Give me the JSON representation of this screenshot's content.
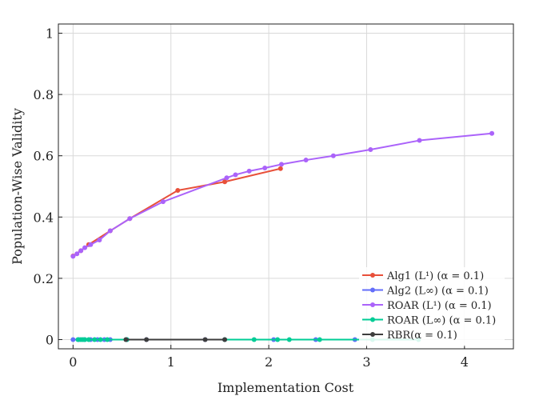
{
  "chart_data": {
    "type": "line",
    "title": "",
    "xlabel": "Implementation Cost",
    "ylabel": "Population-Wise Validity",
    "xlim": [
      -0.15,
      4.5
    ],
    "ylim": [
      -0.03,
      1.03
    ],
    "xticks": [
      0,
      1,
      2,
      3,
      4
    ],
    "yticks": [
      0,
      0.2,
      0.4,
      0.6,
      0.8,
      1
    ],
    "ytick_labels": [
      "0",
      "0.2",
      "0.4",
      "0.6",
      "0.8",
      "1"
    ],
    "grid": true,
    "legend_position": "bottom-right",
    "series": [
      {
        "name": "Alg1 (L¹) (α = 0.1)",
        "legend_label": "Alg1 (L¹) (α = 0.1)",
        "color": "#e8503a",
        "x": [
          0.0,
          0.08,
          0.16,
          0.38,
          0.58,
          1.07,
          1.55,
          2.12
        ],
        "y": [
          0.273,
          0.29,
          0.31,
          0.355,
          0.395,
          0.487,
          0.515,
          0.558
        ]
      },
      {
        "name": "Alg2 (L∞) (α = 0.1)",
        "legend_label": "Alg2 (L∞) (α = 0.1)",
        "color": "#636efa",
        "x": [
          0.0,
          0.06,
          0.12,
          0.18,
          0.25,
          0.32,
          0.38,
          0.55,
          0.75,
          1.35,
          1.55,
          2.05,
          2.48,
          2.88
        ],
        "y": [
          0,
          0,
          0,
          0,
          0,
          0,
          0,
          0,
          0,
          0,
          0,
          0,
          0,
          0
        ]
      },
      {
        "name": "ROAR (L¹) (α = 0.1)",
        "legend_label": "ROAR (L¹) (α = 0.1)",
        "color": "#ab63fa",
        "x": [
          0.0,
          0.04,
          0.08,
          0.12,
          0.18,
          0.27,
          0.38,
          0.58,
          0.92,
          1.57,
          1.66,
          1.8,
          1.96,
          2.13,
          2.38,
          2.66,
          3.04,
          3.54,
          4.28
        ],
        "y": [
          0.272,
          0.28,
          0.29,
          0.3,
          0.31,
          0.325,
          0.355,
          0.395,
          0.45,
          0.528,
          0.538,
          0.55,
          0.56,
          0.572,
          0.586,
          0.6,
          0.62,
          0.65,
          0.673
        ]
      },
      {
        "name": "ROAR (L∞) (α = 0.1)",
        "legend_label": "ROAR (L∞) (α = 0.1)",
        "color": "#00cc96",
        "x": [
          0.05,
          0.08,
          0.1,
          0.12,
          0.16,
          0.22,
          0.28,
          0.35,
          0.55,
          1.55,
          1.85,
          2.09,
          2.21,
          2.52,
          3.06,
          3.53
        ],
        "y": [
          0,
          0,
          0,
          0,
          0,
          0,
          0,
          0,
          0,
          0,
          0,
          0,
          0,
          0,
          0,
          0
        ]
      },
      {
        "name": "RBR(α = 0.1)",
        "legend_label": "RBR(α = 0.1)",
        "color": "#3d3d3d",
        "x": [
          0.54,
          0.75,
          1.35,
          1.55
        ],
        "y": [
          0,
          0,
          0,
          0
        ]
      }
    ]
  }
}
